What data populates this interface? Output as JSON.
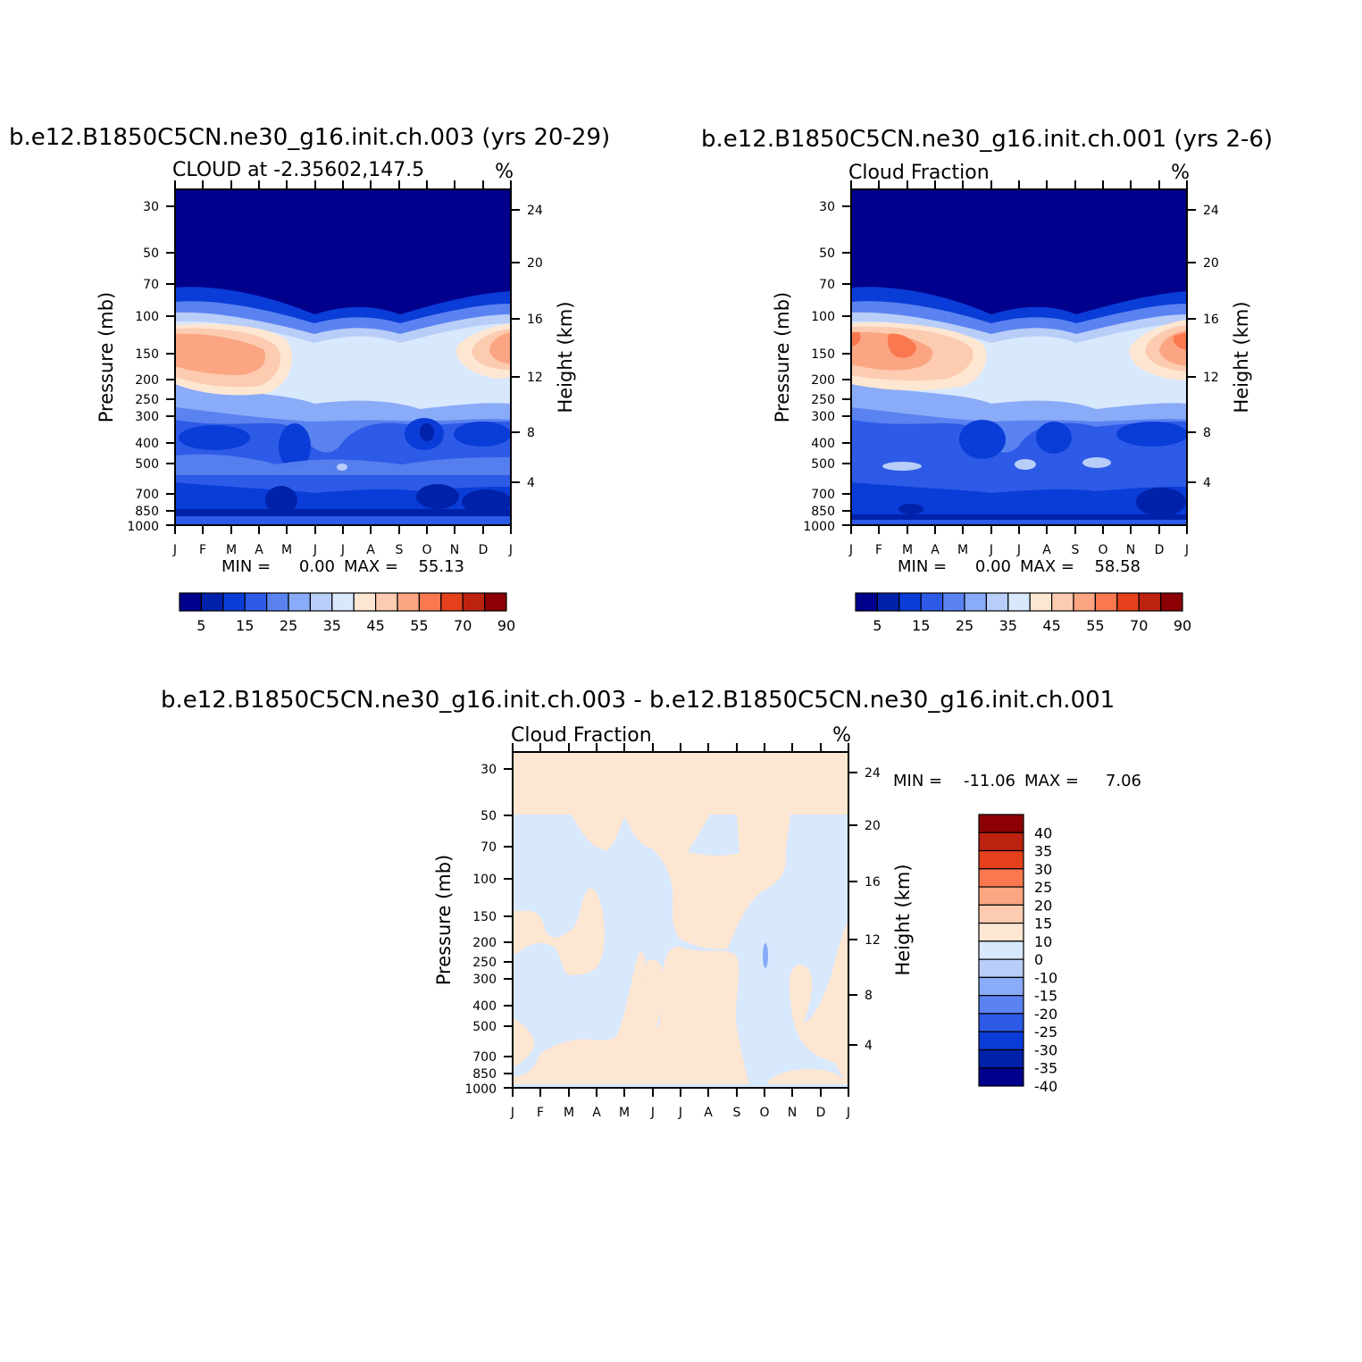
{
  "chart_data": [
    {
      "type": "heatmap",
      "title": "b.e12.B1850C5CN.ne30_g16.init.ch.003 (yrs 20-29)",
      "subtitle": "CLOUD at -2.35602,147.5",
      "units": "%",
      "ylabel": "Pressure (mb)",
      "y2label": "Height (km)",
      "x_ticks": [
        "J",
        "F",
        "M",
        "A",
        "M",
        "J",
        "J",
        "A",
        "S",
        "O",
        "N",
        "D",
        "J"
      ],
      "y_ticks": [
        "30",
        "50",
        "70",
        "100",
        "150",
        "200",
        "250",
        "300",
        "400",
        "500",
        "700",
        "850",
        "1000"
      ],
      "y2_ticks": [
        "24",
        "20",
        "16",
        "12",
        "8",
        "4"
      ],
      "ylim": [
        1000,
        20
      ],
      "stats": {
        "min_label": "MIN =",
        "min": "0.00",
        "max_label": "MAX =",
        "max": "55.13"
      },
      "colorbar": {
        "labels": [
          "5",
          "15",
          "25",
          "35",
          "45",
          "55",
          "70",
          "90"
        ],
        "colors": [
          "#00008c",
          "#0022aa",
          "#0a3cd8",
          "#2d5ae6",
          "#5a82f0",
          "#8aabf7",
          "#b8cdf8",
          "#d8e8fd",
          "#fde6d2",
          "#fccbb0",
          "#fba582",
          "#f9784f",
          "#e4401c",
          "#bd2210",
          "#8c0005"
        ]
      },
      "grid": false,
      "legend_position": "bottom"
    },
    {
      "type": "heatmap",
      "title": "b.e12.B1850C5CN.ne30_g16.init.ch.001 (yrs 2-6)",
      "subtitle": "Cloud Fraction",
      "units": "%",
      "ylabel": "Pressure (mb)",
      "y2label": "Height (km)",
      "x_ticks": [
        "J",
        "F",
        "M",
        "A",
        "M",
        "J",
        "J",
        "A",
        "S",
        "O",
        "N",
        "D",
        "J"
      ],
      "y_ticks": [
        "30",
        "50",
        "70",
        "100",
        "150",
        "200",
        "250",
        "300",
        "400",
        "500",
        "700",
        "850",
        "1000"
      ],
      "y2_ticks": [
        "24",
        "20",
        "16",
        "12",
        "8",
        "4"
      ],
      "ylim": [
        1000,
        20
      ],
      "stats": {
        "min_label": "MIN =",
        "min": "0.00",
        "max_label": "MAX =",
        "max": "58.58"
      },
      "colorbar": {
        "labels": [
          "5",
          "15",
          "25",
          "35",
          "45",
          "55",
          "70",
          "90"
        ],
        "colors": [
          "#00008c",
          "#0022aa",
          "#0a3cd8",
          "#2d5ae6",
          "#5a82f0",
          "#8aabf7",
          "#b8cdf8",
          "#d8e8fd",
          "#fde6d2",
          "#fccbb0",
          "#fba582",
          "#f9784f",
          "#e4401c",
          "#bd2210",
          "#8c0005"
        ]
      },
      "grid": false,
      "legend_position": "bottom"
    },
    {
      "type": "heatmap",
      "title": "b.e12.B1850C5CN.ne30_g16.init.ch.003 - b.e12.B1850C5CN.ne30_g16.init.ch.001",
      "subtitle": "Cloud Fraction",
      "units": "%",
      "ylabel": "Pressure (mb)",
      "y2label": "Height (km)",
      "x_ticks": [
        "J",
        "F",
        "M",
        "A",
        "M",
        "J",
        "J",
        "A",
        "S",
        "O",
        "N",
        "D",
        "J"
      ],
      "y_ticks": [
        "30",
        "50",
        "70",
        "100",
        "150",
        "200",
        "250",
        "300",
        "400",
        "500",
        "700",
        "850",
        "1000"
      ],
      "y2_ticks": [
        "24",
        "20",
        "16",
        "12",
        "8",
        "4"
      ],
      "ylim": [
        1000,
        20
      ],
      "stats": {
        "min_label": "MIN =",
        "min": "-11.06",
        "max_label": "MAX =",
        "max": "7.06"
      },
      "colorbar": {
        "labels": [
          "40",
          "35",
          "30",
          "25",
          "20",
          "15",
          "10",
          "0",
          "-10",
          "-15",
          "-20",
          "-25",
          "-30",
          "-35",
          "-40"
        ],
        "colors": [
          "#8c0005",
          "#bd2210",
          "#e4401c",
          "#f9784f",
          "#fba582",
          "#fccbb0",
          "#fde6d2",
          "#d8e8fd",
          "#b8cdf8",
          "#8aabf7",
          "#5a82f0",
          "#2d5ae6",
          "#0a3cd8",
          "#0022aa",
          "#00008c"
        ]
      },
      "grid": false,
      "legend_position": "right"
    }
  ]
}
